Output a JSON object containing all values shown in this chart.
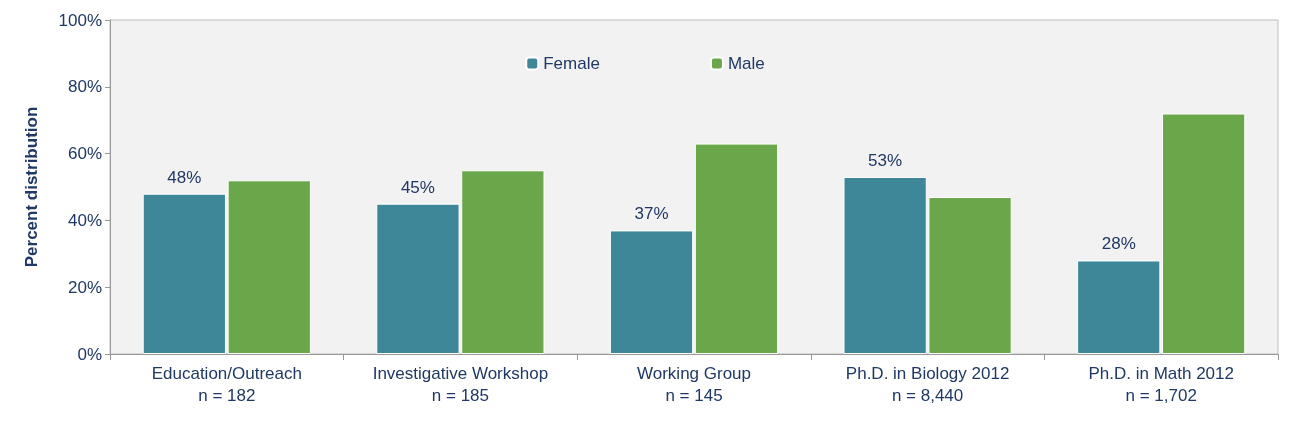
{
  "chart_data": {
    "type": "bar",
    "ylabel": "Percent distribution",
    "categories": [
      "Education/Outreach\nn = 182",
      "Investigative Workshop\nn = 185",
      "Working Group\nn = 145",
      "Ph.D. in Biology 2012\nn = 8,440",
      "Ph.D. in Math 2012\nn = 1,702"
    ],
    "series": [
      {
        "name": "Female",
        "color": "#3e8799",
        "values": [
          48,
          45,
          37,
          53,
          28
        ],
        "value_labels": [
          "48%",
          "45%",
          "37%",
          "53%",
          "28%"
        ]
      },
      {
        "name": "Male",
        "color": "#6aa64a",
        "values": [
          52,
          55,
          63,
          47,
          72
        ]
      }
    ],
    "ylim": [
      0,
      100
    ],
    "yticks": [
      {
        "value": 0,
        "label": "0%"
      },
      {
        "value": 20,
        "label": "20%"
      },
      {
        "value": 40,
        "label": "40%"
      },
      {
        "value": 60,
        "label": "60%"
      },
      {
        "value": 80,
        "label": "80%"
      },
      {
        "value": 100,
        "label": "100%"
      }
    ],
    "grid": false,
    "legend": "top"
  }
}
